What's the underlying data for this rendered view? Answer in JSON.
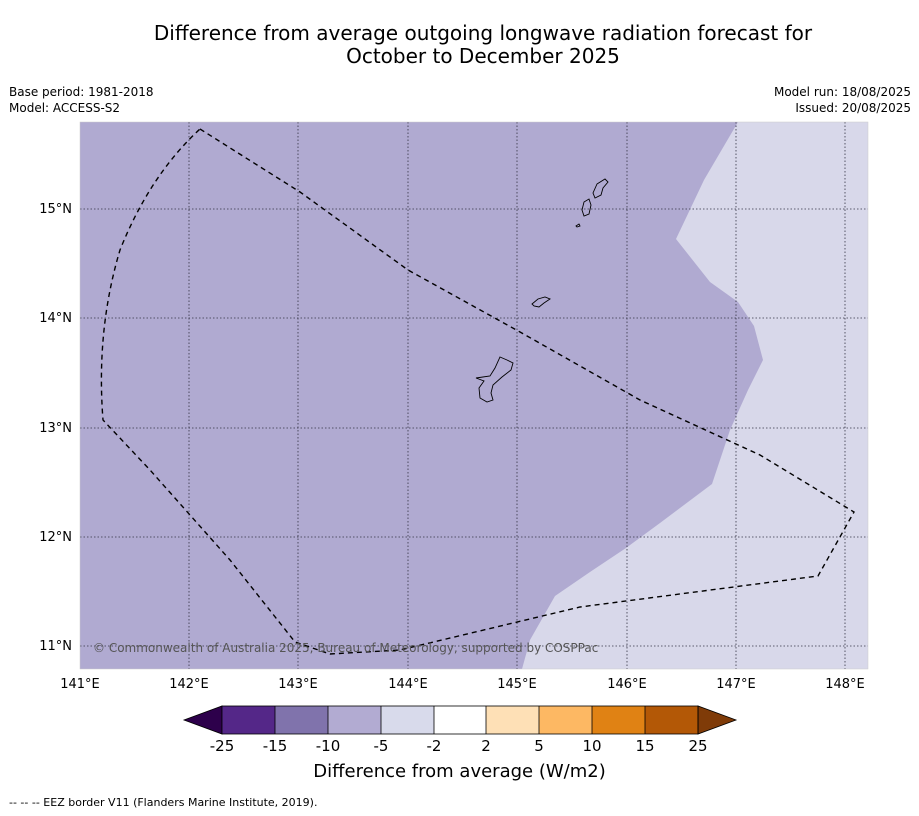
{
  "title": {
    "line1": "Difference from average outgoing longwave radiation forecast for",
    "line2": "October to December 2025"
  },
  "meta": {
    "base_period": "Base period: 1981-2018",
    "model": "Model: ACCESS-S2",
    "model_run": "Model run: 18/08/2025",
    "issued": "Issued: 20/08/2025"
  },
  "map": {
    "lon_labels": [
      "141°E",
      "142°E",
      "143°E",
      "144°E",
      "145°E",
      "146°E",
      "147°E",
      "148°E"
    ],
    "lat_labels": [
      "15°N",
      "14°N",
      "13°N",
      "12°N",
      "11°N"
    ],
    "copyright": "© Commonwealth of Australia 2025, Bureau of Meteorology, supported by COSPPac",
    "colors": {
      "minus10_to_minus5": "#b0aad1",
      "minus5_to_minus2": "#d8d8ea",
      "grid": "#333344",
      "eez": "#000000"
    }
  },
  "colorbar": {
    "title": "Difference from average (W/m2)",
    "tick_labels": [
      "-25",
      "-15",
      "-10",
      "-5",
      "-2",
      "2",
      "5",
      "10",
      "15",
      "25"
    ],
    "colors": [
      "#2d004b",
      "#542788",
      "#8073ac",
      "#b2abd2",
      "#d8daeb",
      "#ffffff",
      "#fee0b6",
      "#fdb863",
      "#e08214",
      "#b35806",
      "#7f3b08"
    ]
  },
  "footnote": "-- -- -- EEZ border V11 (Flanders Marine Institute, 2019)."
}
